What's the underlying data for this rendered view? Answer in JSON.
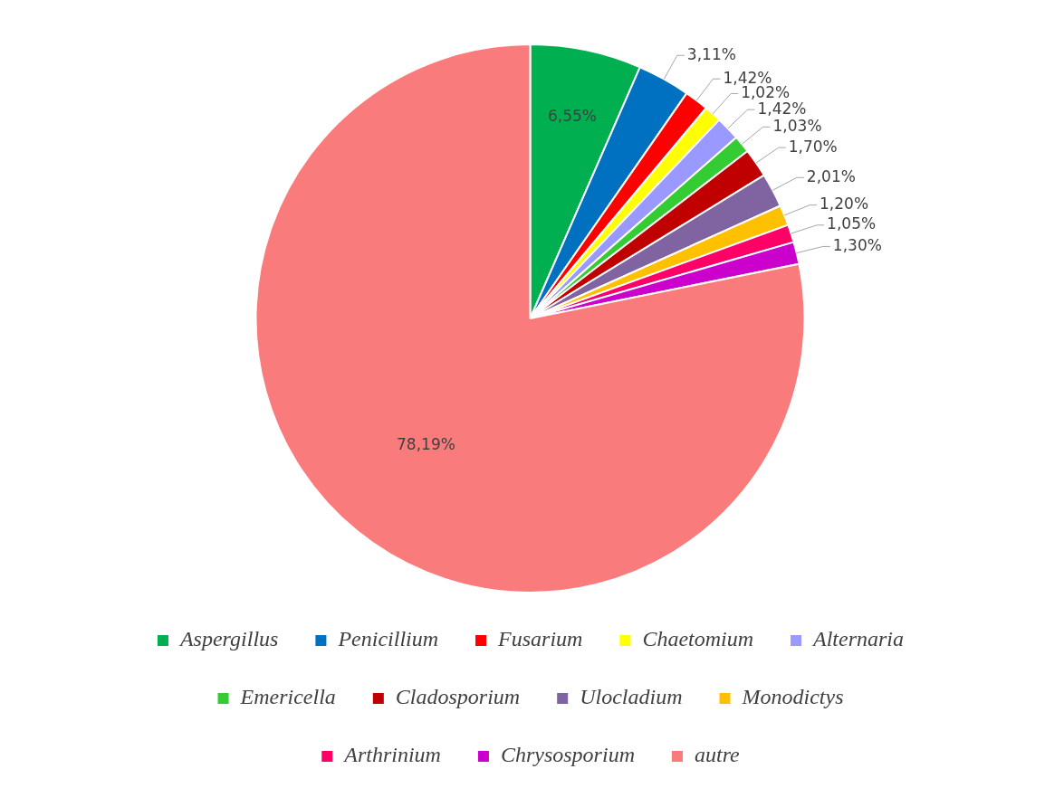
{
  "chart_data": {
    "type": "pie",
    "categories": [
      "Aspergillus",
      "Penicillium",
      "Fusarium",
      "Chaetomium",
      "Alternaria",
      "Emericella",
      "Cladosporium",
      "Ulocladium",
      "Monodictys",
      "Arthrinium",
      "Chrysosporium",
      "autre"
    ],
    "values": [
      6.55,
      3.11,
      1.42,
      1.02,
      1.42,
      1.03,
      1.7,
      2.01,
      1.2,
      1.05,
      1.3,
      78.19
    ],
    "value_labels": [
      "6,55%",
      "3,11%",
      "1,42%",
      "1,02%",
      "1,42%",
      "1,03%",
      "1,70%",
      "2,01%",
      "1,20%",
      "1,05%",
      "1,30%",
      "78,19%"
    ],
    "colors": [
      "#00b050",
      "#0070c0",
      "#ff0000",
      "#ffff00",
      "#9999ff",
      "#33cc33",
      "#c00000",
      "#8064a2",
      "#ffc000",
      "#ff0066",
      "#cc00cc",
      "#fa7b7b"
    ],
    "legend": "bottom"
  }
}
